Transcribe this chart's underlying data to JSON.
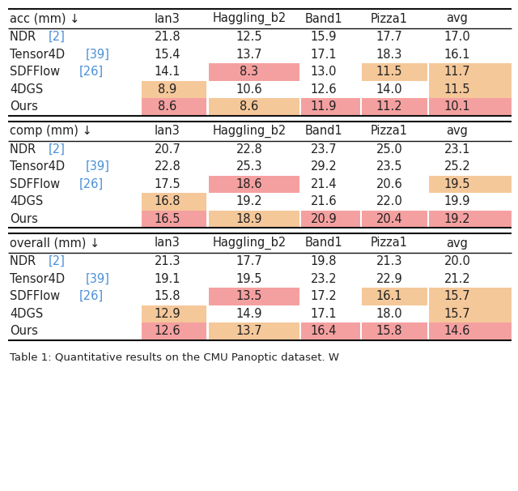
{
  "sections": [
    {
      "header": "acc (mm) ↓",
      "columns": [
        "Ian3",
        "Haggling_b2",
        "Band1",
        "Pizza1",
        "avg"
      ],
      "rows": [
        {
          "method": "NDR",
          "cite": "[2]",
          "values": [
            "21.8",
            "12.5",
            "15.9",
            "17.7",
            "17.0"
          ],
          "highlights": [
            null,
            null,
            null,
            null,
            null
          ]
        },
        {
          "method": "Tensor4D",
          "cite": "[39]",
          "values": [
            "15.4",
            "13.7",
            "17.1",
            "18.3",
            "16.1"
          ],
          "highlights": [
            null,
            null,
            null,
            null,
            null
          ]
        },
        {
          "method": "SDFFlow",
          "cite": "[26]",
          "values": [
            "14.1",
            "8.3",
            "13.0",
            "11.5",
            "11.7"
          ],
          "highlights": [
            null,
            "#f5a0a0",
            null,
            "#f5c89a",
            "#f5c89a"
          ]
        },
        {
          "method": "4DGS",
          "cite": "",
          "values": [
            "8.9",
            "10.6",
            "12.6",
            "14.0",
            "11.5"
          ],
          "highlights": [
            "#f5c89a",
            null,
            null,
            null,
            "#f5c89a"
          ]
        },
        {
          "method": "Ours",
          "cite": "",
          "values": [
            "8.6",
            "8.6",
            "11.9",
            "11.2",
            "10.1"
          ],
          "highlights": [
            "#f5a0a0",
            "#f5c89a",
            "#f5a0a0",
            "#f5a0a0",
            "#f5a0a0"
          ]
        }
      ]
    },
    {
      "header": "comp (mm) ↓",
      "columns": [
        "Ian3",
        "Haggling_b2",
        "Band1",
        "Pizza1",
        "avg"
      ],
      "rows": [
        {
          "method": "NDR",
          "cite": "[2]",
          "values": [
            "20.7",
            "22.8",
            "23.7",
            "25.0",
            "23.1"
          ],
          "highlights": [
            null,
            null,
            null,
            null,
            null
          ]
        },
        {
          "method": "Tensor4D",
          "cite": "[39]",
          "values": [
            "22.8",
            "25.3",
            "29.2",
            "23.5",
            "25.2"
          ],
          "highlights": [
            null,
            null,
            null,
            null,
            null
          ]
        },
        {
          "method": "SDFFlow",
          "cite": "[26]",
          "values": [
            "17.5",
            "18.6",
            "21.4",
            "20.6",
            "19.5"
          ],
          "highlights": [
            null,
            "#f5a0a0",
            null,
            null,
            "#f5c89a"
          ]
        },
        {
          "method": "4DGS",
          "cite": "",
          "values": [
            "16.8",
            "19.2",
            "21.6",
            "22.0",
            "19.9"
          ],
          "highlights": [
            "#f5c89a",
            null,
            null,
            null,
            null
          ]
        },
        {
          "method": "Ours",
          "cite": "",
          "values": [
            "16.5",
            "18.9",
            "20.9",
            "20.4",
            "19.2"
          ],
          "highlights": [
            "#f5a0a0",
            "#f5c89a",
            "#f5a0a0",
            "#f5a0a0",
            "#f5a0a0"
          ]
        }
      ]
    },
    {
      "header": "overall (mm) ↓",
      "columns": [
        "Ian3",
        "Haggling_b2",
        "Band1",
        "Pizza1",
        "avg"
      ],
      "rows": [
        {
          "method": "NDR",
          "cite": "[2]",
          "values": [
            "21.3",
            "17.7",
            "19.8",
            "21.3",
            "20.0"
          ],
          "highlights": [
            null,
            null,
            null,
            null,
            null
          ]
        },
        {
          "method": "Tensor4D",
          "cite": "[39]",
          "values": [
            "19.1",
            "19.5",
            "23.2",
            "22.9",
            "21.2"
          ],
          "highlights": [
            null,
            null,
            null,
            null,
            null
          ]
        },
        {
          "method": "SDFFlow",
          "cite": "[26]",
          "values": [
            "15.8",
            "13.5",
            "17.2",
            "16.1",
            "15.7"
          ],
          "highlights": [
            null,
            "#f5a0a0",
            null,
            "#f5c89a",
            "#f5c89a"
          ]
        },
        {
          "method": "4DGS",
          "cite": "",
          "values": [
            "12.9",
            "14.9",
            "17.1",
            "18.0",
            "15.7"
          ],
          "highlights": [
            "#f5c89a",
            null,
            null,
            null,
            "#f5c89a"
          ]
        },
        {
          "method": "Ours",
          "cite": "",
          "values": [
            "12.6",
            "13.7",
            "16.4",
            "15.8",
            "14.6"
          ],
          "highlights": [
            "#f5a0a0",
            "#f5c89a",
            "#f5a0a0",
            "#f5a0a0",
            "#f5a0a0"
          ]
        }
      ]
    }
  ],
  "caption": "Table 1: Quantitative results on the CMU Panoptic dataset. W",
  "bg_color": "#ffffff",
  "text_color": "#222222",
  "ref_blue": "#4a90d9",
  "font_size": 10.5,
  "caption_font_size": 9.5
}
